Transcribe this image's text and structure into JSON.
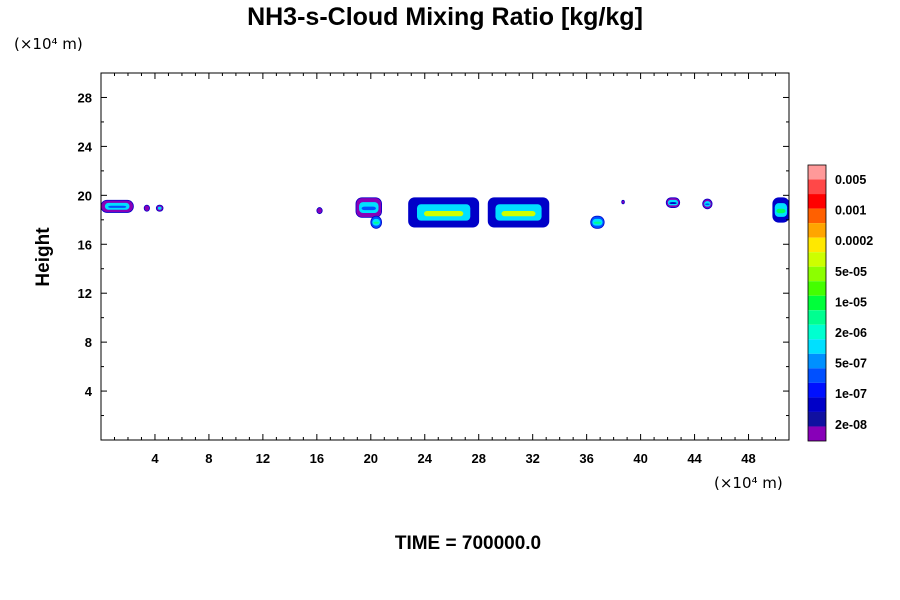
{
  "chart_data": {
    "type": "heatmap",
    "title": "NH3-s-Cloud Mixing Ratio [kg/kg]",
    "ylabel": "Height",
    "y_unit_label": "(×10⁴ m)",
    "x_unit_label": "(×10⁴ m)",
    "xlim": [
      0,
      51
    ],
    "ylim": [
      0,
      30
    ],
    "x_ticks": [
      4,
      8,
      12,
      16,
      20,
      24,
      28,
      32,
      36,
      40,
      44,
      48
    ],
    "x_tick_labels": [
      "4",
      "8",
      "12",
      "16",
      "20",
      "24",
      "28",
      "32",
      "36",
      "40",
      "44",
      "48"
    ],
    "y_ticks": [
      4,
      8,
      12,
      16,
      20,
      24,
      28
    ],
    "y_tick_labels": [
      "4",
      "8",
      "12",
      "16",
      "20",
      "24",
      "28"
    ],
    "colorbar": {
      "labels": [
        "0.005",
        "0.001",
        "0.0002",
        "5e-05",
        "1e-05",
        "2e-06",
        "5e-07",
        "1e-07",
        "2e-08"
      ],
      "colors_top_to_bottom": [
        "#ff9999",
        "#ff4848",
        "#ff0000",
        "#ff6000",
        "#ffa500",
        "#ffe800",
        "#cdff00",
        "#8cff00",
        "#44ff00",
        "#00ff3a",
        "#00ff90",
        "#00ffd0",
        "#00e0ff",
        "#0090ff",
        "#0050ff",
        "#0010ff",
        "#0000c8",
        "#1010a0",
        "#8800b8"
      ]
    },
    "cloud_regions": [
      {
        "x": [
          0.0,
          2.4
        ],
        "y": [
          18.6,
          19.6
        ],
        "level": "2e-08",
        "core": "5e-07"
      },
      {
        "x": [
          3.2,
          3.6
        ],
        "y": [
          18.7,
          19.2
        ],
        "level": "2e-08",
        "core": "1e-07"
      },
      {
        "x": [
          4.1,
          4.6
        ],
        "y": [
          18.7,
          19.2
        ],
        "level": "2e-08",
        "core": "1e-07"
      },
      {
        "x": [
          16.0,
          16.4
        ],
        "y": [
          18.5,
          19.0
        ],
        "level": "2e-08",
        "core": "1e-07"
      },
      {
        "x": [
          18.9,
          20.8
        ],
        "y": [
          18.2,
          19.8
        ],
        "level": "2e-08",
        "core": "5e-07"
      },
      {
        "x": [
          20.0,
          20.8
        ],
        "y": [
          17.3,
          18.3
        ],
        "level": "5e-07",
        "core": "1e-05"
      },
      {
        "x": [
          22.8,
          28.0
        ],
        "y": [
          17.4,
          19.8
        ],
        "level": "1e-07",
        "core": "0.0002"
      },
      {
        "x": [
          28.7,
          33.2
        ],
        "y": [
          17.4,
          19.8
        ],
        "level": "1e-07",
        "core": "0.0002"
      },
      {
        "x": [
          36.3,
          37.3
        ],
        "y": [
          17.3,
          18.3
        ],
        "level": "5e-07",
        "core": "1e-05"
      },
      {
        "x": [
          38.6,
          38.8
        ],
        "y": [
          19.3,
          19.6
        ],
        "level": "2e-08",
        "core": "2e-08"
      },
      {
        "x": [
          41.9,
          42.9
        ],
        "y": [
          19.0,
          19.8
        ],
        "level": "2e-08",
        "core": "1e-07"
      },
      {
        "x": [
          44.6,
          45.3
        ],
        "y": [
          18.9,
          19.7
        ],
        "level": "2e-08",
        "core": "5e-07"
      },
      {
        "x": [
          49.8,
          51.0
        ],
        "y": [
          17.8,
          19.8
        ],
        "level": "1e-07",
        "core": "5e-06"
      }
    ]
  },
  "footer": {
    "time_label": "TIME = 700000.0"
  }
}
